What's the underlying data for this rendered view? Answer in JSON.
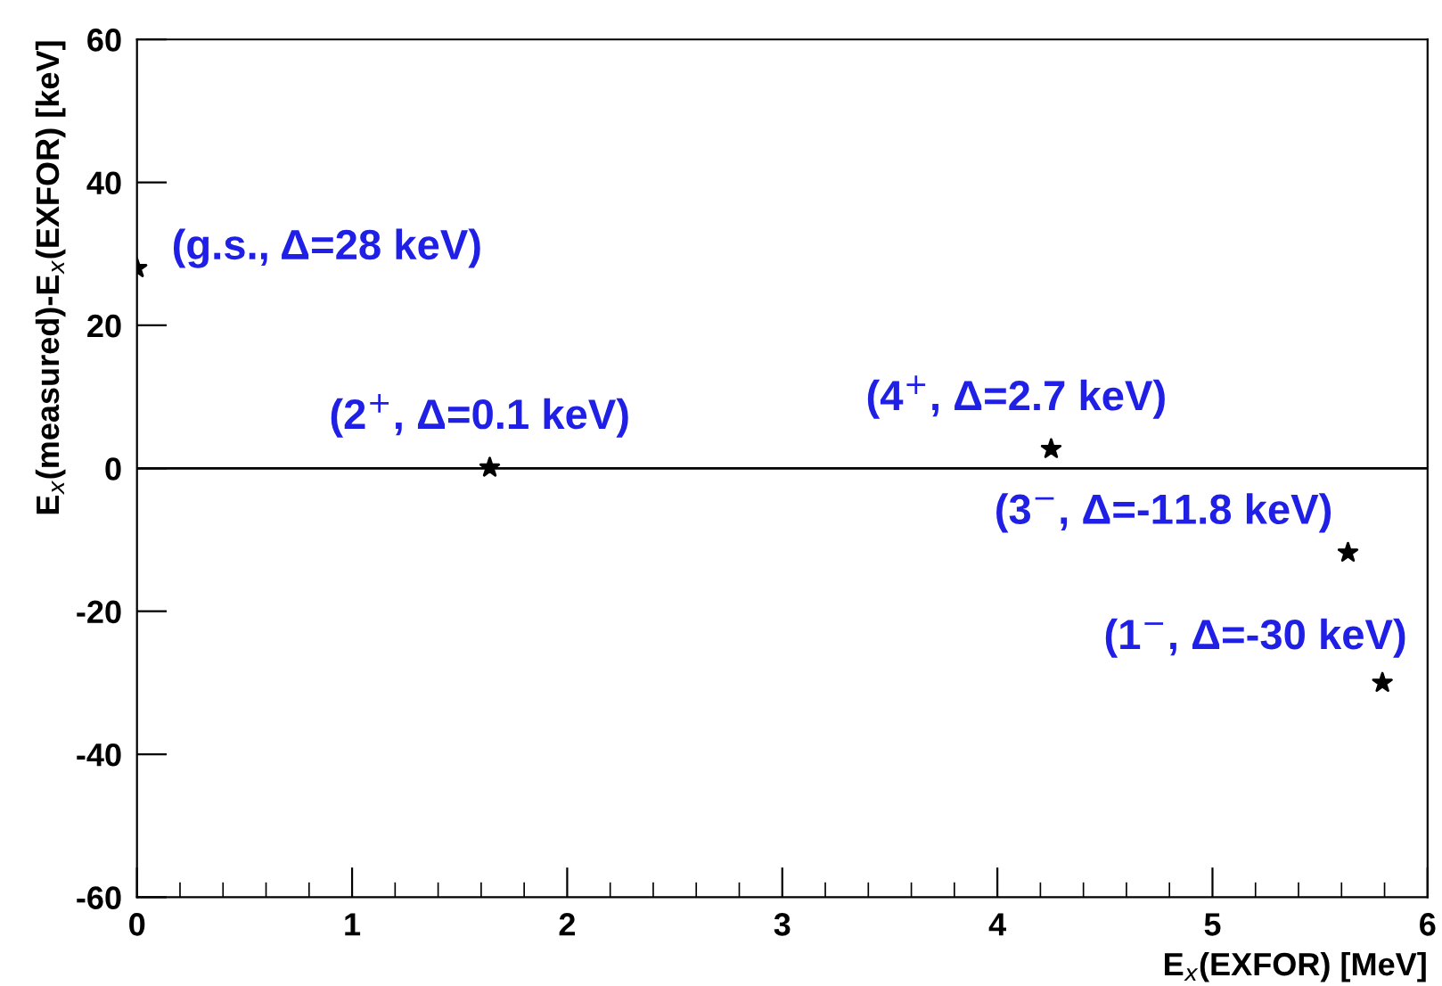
{
  "chart_data": {
    "type": "scatter",
    "xlabel": "E$_{x}$(EXFOR) [MeV]",
    "ylabel": "E$_{x}$(measured)-E$_{x}$(EXFOR) [keV]",
    "x": [
      0,
      1.64,
      4.25,
      5.63,
      5.79
    ],
    "values": [
      28,
      0.1,
      2.7,
      -11.8,
      -30
    ],
    "color": "#000000",
    "marker": "star",
    "xlim": [
      0,
      6
    ],
    "xticks": [
      0,
      1,
      2,
      3,
      4,
      5,
      6
    ],
    "ylim": [
      -60,
      60
    ],
    "yticks": [
      -60,
      -40,
      -20,
      0,
      20,
      40,
      60
    ],
    "grid": false,
    "legend": false,
    "ref_lines": [
      {
        "axis": "y",
        "value": 0,
        "color": "#000000"
      }
    ],
    "annotations": [
      {
        "text": "(g.s., Δ=28 keV)",
        "x": 0,
        "y": 28
      },
      {
        "text": "(2$^{+}$, Δ=0.1 keV)",
        "x": 1.64,
        "y": 0.1
      },
      {
        "text": "(4$^{+}$, Δ=2.7 keV)",
        "x": 4.25,
        "y": 2.7
      },
      {
        "text": "(3$^{−}$, Δ=-11.8 keV)",
        "x": 5.63,
        "y": -11.8
      },
      {
        "text": "(1$^{−}$, Δ=-30 keV)",
        "x": 5.79,
        "y": -30
      }
    ]
  }
}
